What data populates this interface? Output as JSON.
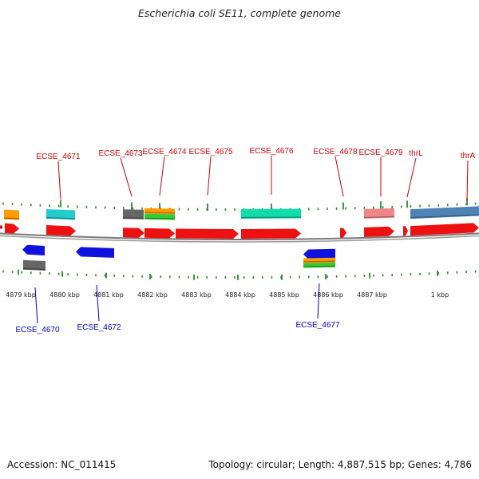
{
  "title": "Escherichia coli SE11, complete genome",
  "footer": {
    "accession": "Accession: NC_011415",
    "summary": "Topology: circular; Length: 4,887,515 bp; Genes: 4,786"
  },
  "colors": {
    "backbone": "#7a7a7a",
    "tick": "#2e8b2e",
    "forward_label": "#cc0000",
    "reverse_label": "#0000cc",
    "cds_forward": "#ee1111",
    "cds_reverse": "#1111dd",
    "grey": "#666666",
    "orange": "#ff9900",
    "green": "#33cc33",
    "cyan": "#22cccc",
    "teal": "#11ddaa",
    "pink": "#ee8888",
    "steelblue": "#4f83b8"
  },
  "scale_labels": [
    "4879 kbp",
    "4880 kbp",
    "4881 kbp",
    "4882 kbp",
    "4883 kbp",
    "4884 kbp",
    "4885 kbp",
    "4886 kbp",
    "4887 kbp",
    "1 kbp"
  ],
  "forward_genes": [
    "ECSE_4671",
    "ECSE_4673",
    "ECSE_4674",
    "ECSE_4675",
    "ECSE_4676",
    "ECSE_4678",
    "ECSE_4679",
    "thrL",
    "thrA"
  ],
  "reverse_genes": [
    "ECSE_4670",
    "ECSE_4672",
    "ECSE_4677"
  ]
}
